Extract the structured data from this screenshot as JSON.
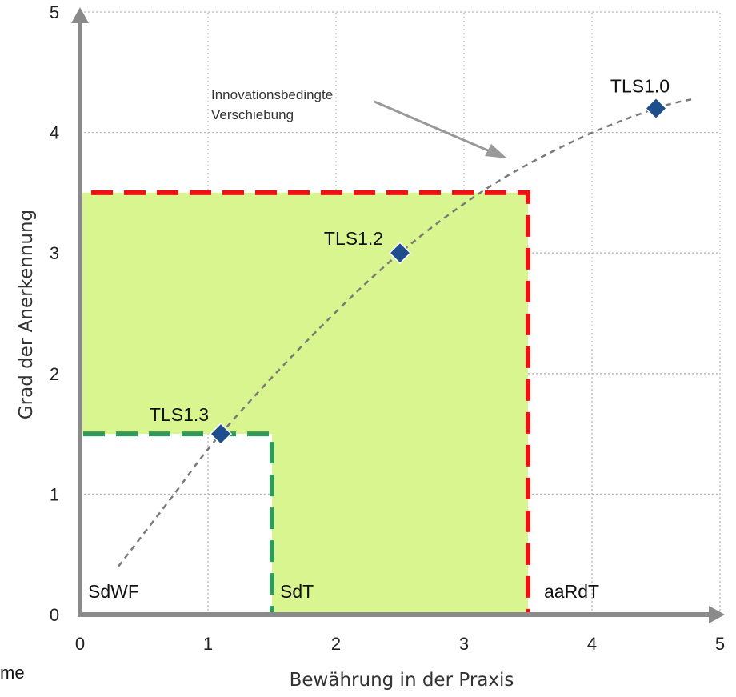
{
  "chart_data": {
    "type": "scatter",
    "xlabel": "Bewährung in der Praxis",
    "ylabel": "Grad der Anerkennung",
    "xlim": [
      0,
      5
    ],
    "ylim": [
      0,
      5
    ],
    "x_ticks": [
      "0",
      "1",
      "2",
      "3",
      "4",
      "5"
    ],
    "y_ticks": [
      "0",
      "1",
      "2",
      "3",
      "4",
      "5"
    ],
    "grid": true,
    "points": [
      {
        "label": "TLS1.3",
        "x": 1.1,
        "y": 1.5
      },
      {
        "label": "TLS1.2",
        "x": 2.5,
        "y": 3.0
      },
      {
        "label": "TLS1.0",
        "x": 4.5,
        "y": 4.2
      }
    ],
    "trend_curve": [
      [
        0.3,
        0.4
      ],
      [
        0.7,
        0.95
      ],
      [
        1.1,
        1.5
      ],
      [
        1.8,
        2.3
      ],
      [
        2.5,
        3.0
      ],
      [
        3.2,
        3.55
      ],
      [
        3.9,
        3.95
      ],
      [
        4.5,
        4.2
      ],
      [
        4.8,
        4.28
      ]
    ],
    "regions": [
      {
        "label": "aaRdT",
        "x_max": 3.5,
        "y_max": 3.5,
        "border_color": "#ee1111",
        "fill_color": "#d9f58f"
      },
      {
        "label": "SdT",
        "x_min": 1.5,
        "x_max": 3.5,
        "y_max": 3.5,
        "fill_color": "#d9f58f"
      },
      {
        "label": "SdWF",
        "x_max": 1.5,
        "y_max": 1.5,
        "border_color": "#2f9b5a",
        "fill_color": "#ffffff"
      }
    ],
    "annotation": {
      "line1": "Innovationsbedingte",
      "line2": "Verschiebung"
    },
    "point_color": "#1f4e8c"
  },
  "stray_text": "me"
}
